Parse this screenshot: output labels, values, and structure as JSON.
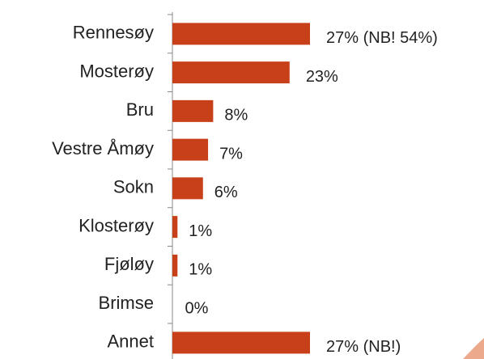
{
  "chart_data": {
    "type": "bar",
    "orientation": "horizontal",
    "categories": [
      "Rennesøy",
      "Mosterøy",
      "Bru",
      "Vestre Åmøy",
      "Sokn",
      "Klosterøy",
      "Fjøløy",
      "Brimse",
      "Annet"
    ],
    "values": [
      27,
      23,
      8,
      7,
      6,
      1,
      1,
      0,
      27
    ],
    "value_labels": [
      "27%  (NB! 54%)",
      "23%",
      "8%",
      "7%",
      "6%",
      "1%",
      "1%",
      "0%",
      "27% (NB!)"
    ],
    "color": "#c8401a"
  }
}
